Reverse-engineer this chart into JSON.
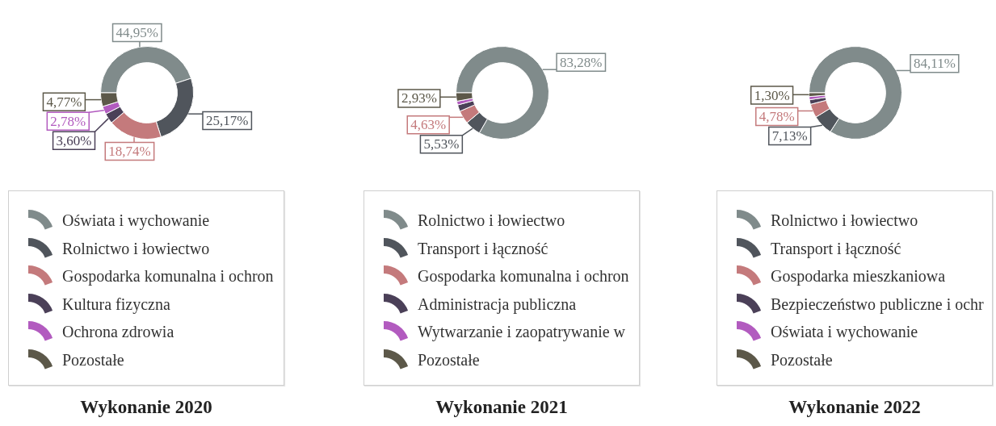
{
  "chart_data": [
    {
      "type": "donut",
      "title": "Wykonanie 2020",
      "legend": "bottom",
      "categories": [
        "Oświata i wychowanie",
        "Rolnictwo i łowiectwo",
        "Gospodarka komunalna i ochron",
        "Kultura fizyczna",
        "Ochrona zdrowia",
        "Pozostałe"
      ],
      "values": [
        44.95,
        25.17,
        18.74,
        3.6,
        2.78,
        4.77
      ],
      "value_labels": [
        "44,95%",
        "25,17%",
        "18,74%",
        "3,60%",
        "2,78%",
        "4,77%"
      ],
      "colors": [
        "#808b8b",
        "#50555c",
        "#c47a7c",
        "#4b4058",
        "#b25bbf",
        "#5c5849"
      ]
    },
    {
      "type": "donut",
      "title": "Wykonanie 2021",
      "legend": "bottom",
      "categories": [
        "Rolnictwo i łowiectwo",
        "Transport i łączność",
        "Gospodarka komunalna i ochron",
        "Administracja publiczna",
        "Wytwarzanie i zaopatrywanie w",
        "Pozostałe"
      ],
      "values": [
        83.28,
        5.53,
        4.63,
        2.3,
        1.3,
        2.93
      ],
      "value_labels": [
        "83,28%",
        "5,53%",
        "4,63%",
        null,
        null,
        "2,93%"
      ],
      "colors": [
        "#808b8b",
        "#50555c",
        "#c47a7c",
        "#4b4058",
        "#b25bbf",
        "#5c5849"
      ]
    },
    {
      "type": "donut",
      "title": "Wykonanie 2022",
      "legend": "bottom",
      "categories": [
        "Rolnictwo i łowiectwo",
        "Transport i łączność",
        "Gospodarka mieszkaniowa",
        "Bezpieczeństwo publiczne i ochr",
        "Oświata i wychowanie",
        "Pozostałe"
      ],
      "values": [
        84.11,
        7.13,
        4.78,
        1.6,
        1.1,
        1.3
      ],
      "value_labels": [
        "84,11%",
        "7,13%",
        "4,78%",
        null,
        null,
        "1,30%"
      ],
      "colors": [
        "#808b8b",
        "#50555c",
        "#c47a7c",
        "#4b4058",
        "#b25bbf",
        "#5c5849"
      ]
    }
  ]
}
